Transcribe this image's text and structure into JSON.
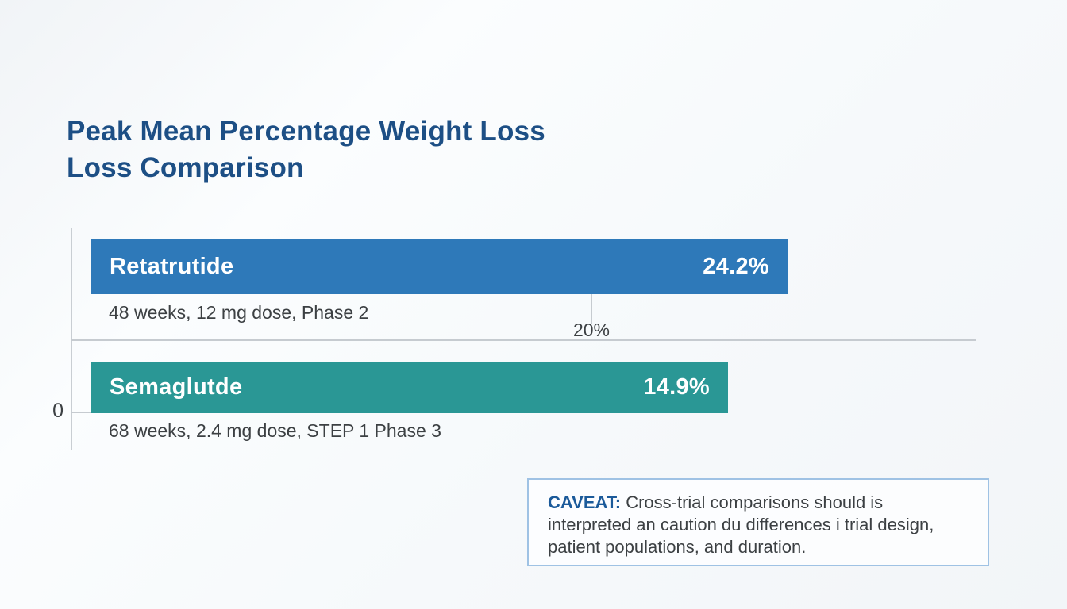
{
  "title": {
    "line1": "Peak Mean Percentage Weight Loss",
    "line2": "Loss Comparison"
  },
  "chart_data": {
    "type": "bar",
    "orientation": "horizontal",
    "title": "Peak Mean Percentage Weight Loss Loss Comparison",
    "categories": [
      "Retatrutide",
      "Semaglutde"
    ],
    "values": [
      24.2,
      14.9
    ],
    "value_labels": [
      "24.2%",
      "14.9%"
    ],
    "category_sublabels": [
      "48 weeks, 12 mg dose, Phase 2",
      "68 weeks, 2.4 mg dose, STEP 1 Phase 3"
    ],
    "x_ticks": [
      "0",
      "20%"
    ],
    "xlim": [
      0,
      26
    ],
    "grid": "minimal",
    "legend": "none",
    "bar_colors": [
      "#2e79b9",
      "#2a9795"
    ]
  },
  "bars": [
    {
      "name": "Retatrutide",
      "value": "24.2%",
      "sublabel": "48 weeks, 12 mg dose, Phase 2",
      "color": "#2e79b9"
    },
    {
      "name": "Semaglutde",
      "value": "14.9%",
      "sublabel": "68 weeks, 2.4 mg dose, STEP 1 Phase 3",
      "color": "#2a9795"
    }
  ],
  "axis": {
    "tick_0": "0",
    "tick_20": "20%"
  },
  "caveat": {
    "prefix": "CAVEAT:",
    "line1_rest": " Cross-trial comparisons should is",
    "line2": "interpreted an caution du differences i trial design,",
    "line3": "patient populations, and duration."
  },
  "colors": {
    "title_text": "#1d4f85",
    "bar_text": "#ffffff",
    "sublabel_text": "#3c4043",
    "axis_line": "#c9ced3",
    "caveat_border": "#9fc2e4",
    "caveat_accent": "#1b5a9a"
  }
}
